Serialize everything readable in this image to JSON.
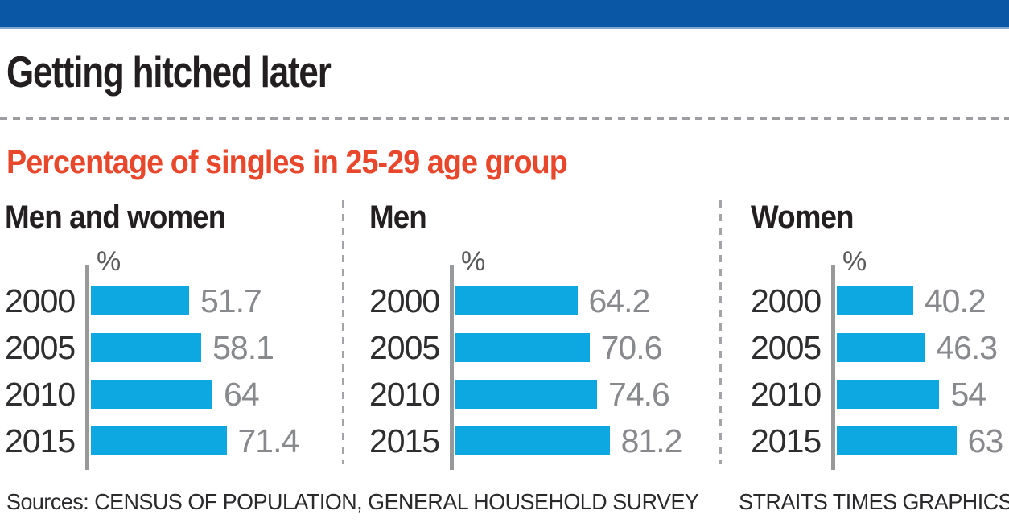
{
  "page": {
    "title": "Getting hitched later",
    "subtitle": "Percentage of singles in 25-29 age group",
    "sources_prefix": "Sources:",
    "sources_text": "CENSUS OF POPULATION, GENERAL HOUSEHOLD SURVEY",
    "credit": "STRAITS TIMES GRAPHICS"
  },
  "colors": {
    "masthead_blue": "#0a57a6",
    "masthead_edge": "#7fa9d0",
    "bar_blue": "#0da7e2",
    "subtitle_red": "#e8472b",
    "text_dark": "#231f20",
    "axis_gray": "#98999b",
    "value_gray": "#87898c"
  },
  "chart_data": [
    {
      "type": "bar",
      "orientation": "horizontal",
      "title": "Men and women",
      "unit": "%",
      "categories": [
        "2000",
        "2005",
        "2010",
        "2015"
      ],
      "values": [
        51.7,
        58.1,
        64,
        71.4
      ],
      "xlim": [
        0,
        100
      ],
      "grid": false,
      "value_labels": "right-of-bar"
    },
    {
      "type": "bar",
      "orientation": "horizontal",
      "title": "Men",
      "unit": "%",
      "categories": [
        "2000",
        "2005",
        "2010",
        "2015"
      ],
      "values": [
        64.2,
        70.6,
        74.6,
        81.2
      ],
      "xlim": [
        0,
        100
      ],
      "grid": false,
      "value_labels": "right-of-bar"
    },
    {
      "type": "bar",
      "orientation": "horizontal",
      "title": "Women",
      "unit": "%",
      "categories": [
        "2000",
        "2005",
        "2010",
        "2015"
      ],
      "values": [
        40.2,
        46.3,
        54,
        63
      ],
      "xlim": [
        0,
        100
      ],
      "grid": false,
      "value_labels": "right-of-bar"
    }
  ]
}
